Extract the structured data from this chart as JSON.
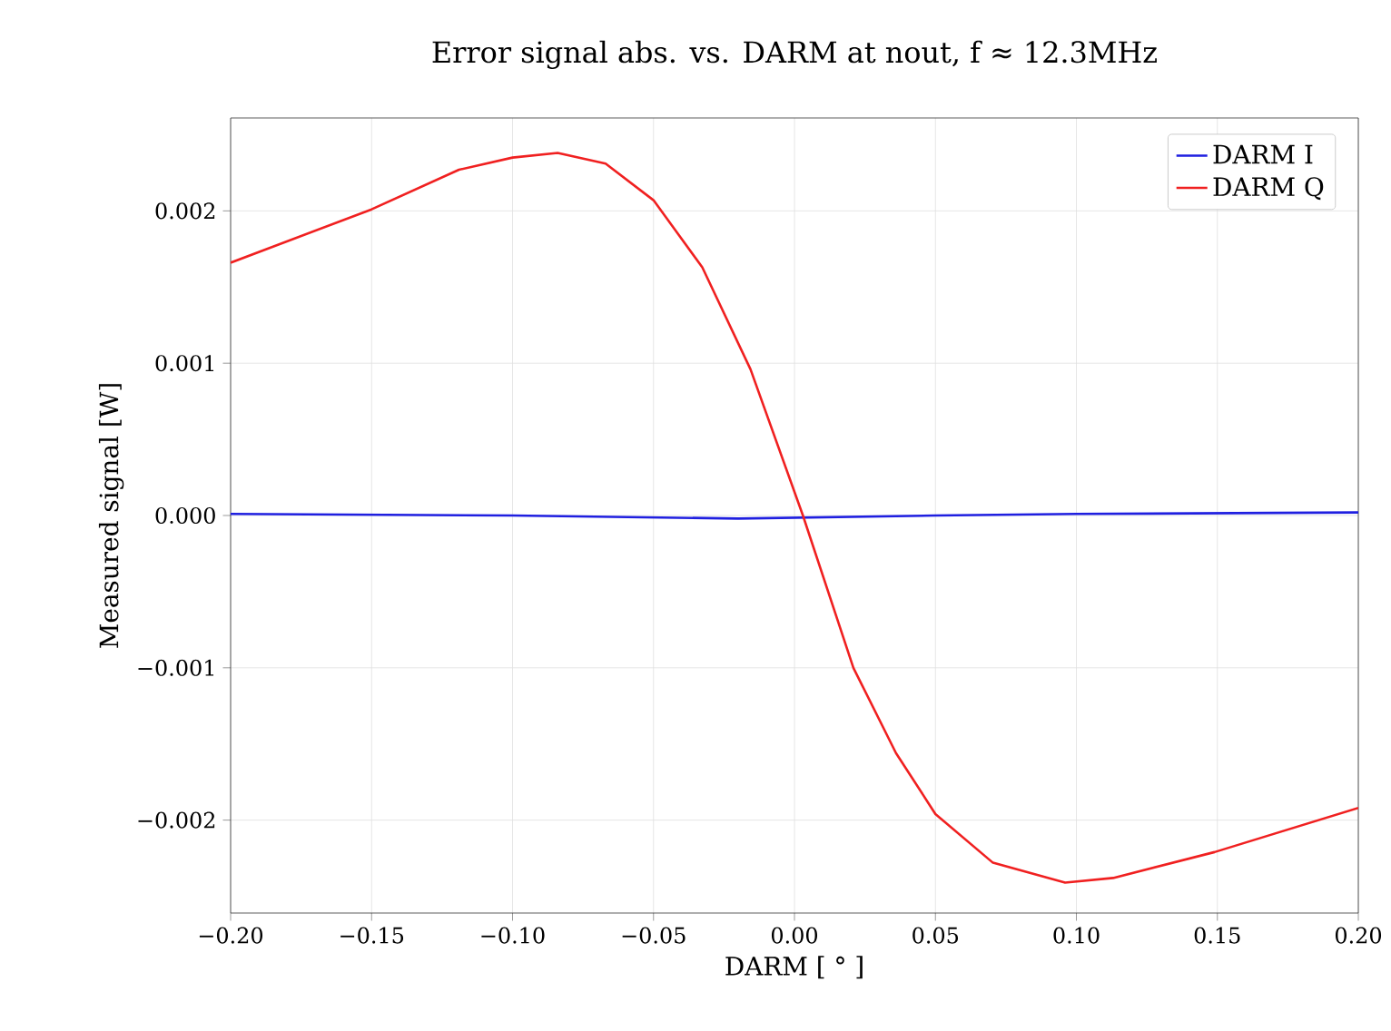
{
  "chart_data": {
    "type": "line",
    "title": "Error signal abs. vs. DARM at nout, f ≈ 12.3MHz",
    "xlabel": "DARM [ ° ]",
    "ylabel": "Measured signal [W]",
    "xlim": [
      -0.2,
      0.2
    ],
    "ylim": [
      -0.00261,
      0.00261
    ],
    "xticks": [
      {
        "value": -0.2,
        "label": "−0.20"
      },
      {
        "value": -0.15,
        "label": "−0.15"
      },
      {
        "value": -0.1,
        "label": "−0.10"
      },
      {
        "value": -0.05,
        "label": "−0.05"
      },
      {
        "value": 0,
        "label": "0.00"
      },
      {
        "value": 0.05,
        "label": "0.05"
      },
      {
        "value": 0.1,
        "label": "0.10"
      },
      {
        "value": 0.15,
        "label": "0.15"
      },
      {
        "value": 0.2,
        "label": "0.20"
      }
    ],
    "yticks": [
      {
        "value": -0.002,
        "label": "−0.002"
      },
      {
        "value": -0.001,
        "label": "−0.001"
      },
      {
        "value": 0,
        "label": "0.000"
      },
      {
        "value": 0.001,
        "label": "0.001"
      },
      {
        "value": 0.002,
        "label": "0.002"
      }
    ],
    "grid": true,
    "legend": "top right",
    "marker": "none",
    "line_style": "solid",
    "series": [
      {
        "name": "DARM I",
        "color": "#1f1fe0",
        "x": [
          -0.2,
          -0.1,
          -0.02,
          0.05,
          0.1,
          0.2
        ],
        "values": [
          1e-05,
          0.0,
          -2e-05,
          0.0,
          1e-05,
          2e-05
        ]
      },
      {
        "name": "DARM Q",
        "color": "#f02020",
        "x": [
          -0.2,
          -0.15,
          -0.119,
          -0.1,
          -0.084,
          -0.067,
          -0.05,
          -0.0327,
          -0.0156,
          0.003,
          0.0209,
          0.036,
          0.05,
          0.0704,
          0.096,
          0.113,
          0.149,
          0.2
        ],
        "values": [
          0.00166,
          0.00201,
          0.00227,
          0.00235,
          0.00238,
          0.00231,
          0.00207,
          0.00163,
          0.00096,
          0.0,
          -0.001,
          -0.00156,
          -0.00196,
          -0.00228,
          -0.00241,
          -0.00238,
          -0.00221,
          -0.00192
        ]
      }
    ]
  }
}
